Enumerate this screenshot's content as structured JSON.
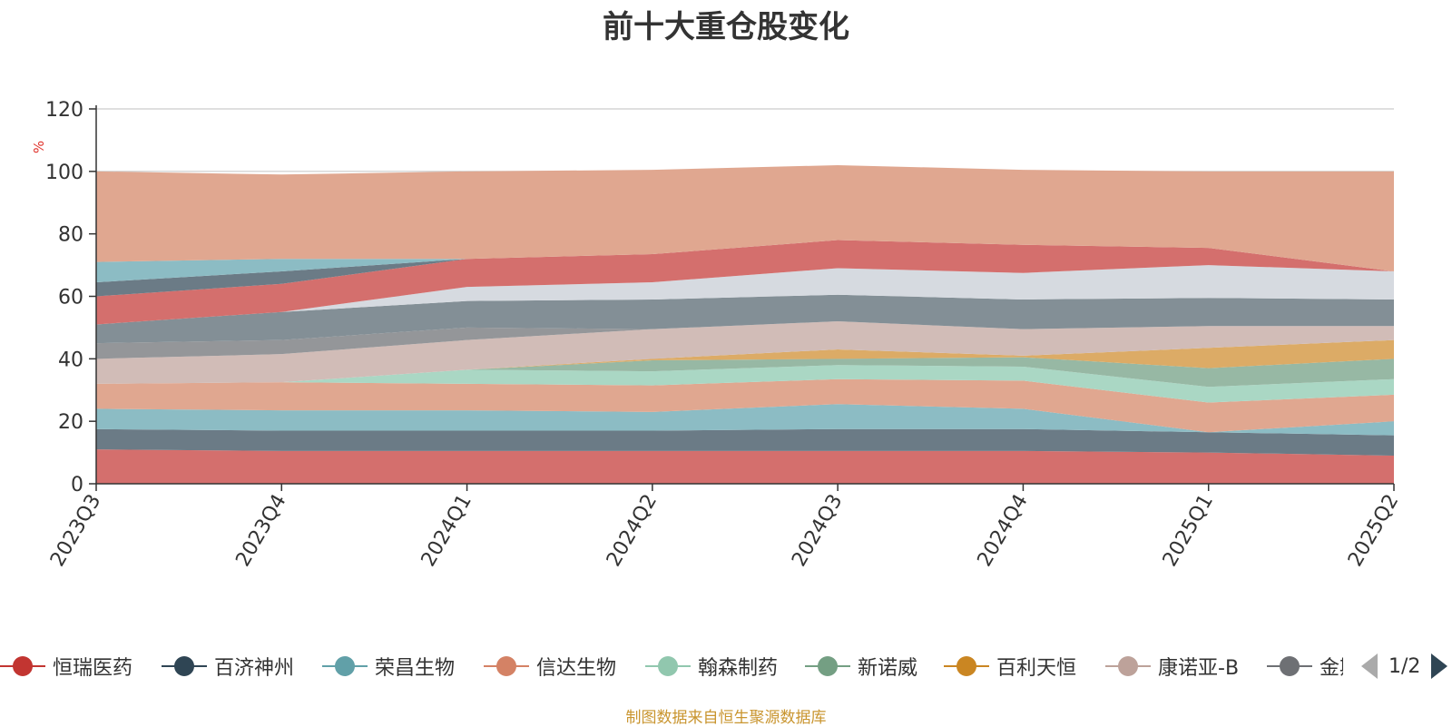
{
  "chart_data": {
    "type": "area",
    "title": "前十大重仓股变化",
    "ylabel": "%",
    "ylim": [
      0,
      120
    ],
    "yticks": [
      0,
      20,
      40,
      60,
      80,
      100,
      120
    ],
    "categories": [
      "2023Q3",
      "2023Q4",
      "2024Q1",
      "2024Q2",
      "2024Q3",
      "2024Q4",
      "2025Q1",
      "2025Q2"
    ],
    "stacked": true,
    "legend_position": "bottom",
    "series": [
      {
        "name": "恒瑞医药",
        "color": "#d46f6d",
        "values": [
          11,
          10.5,
          10.5,
          10.5,
          10.5,
          10.5,
          10,
          9
        ]
      },
      {
        "name": "百济神州",
        "color": "#6b7b86",
        "values": [
          6.5,
          6.5,
          6.5,
          6.5,
          7,
          7,
          6.5,
          6.5
        ]
      },
      {
        "name": "荣昌生物",
        "color": "#8cbcc4",
        "values": [
          6.5,
          6.5,
          6.5,
          6,
          8,
          6.5,
          0,
          4.5
        ]
      },
      {
        "name": "信达生物",
        "color": "#e0a790",
        "values": [
          8,
          9,
          8.5,
          8.5,
          8,
          9,
          9.5,
          8.5
        ]
      },
      {
        "name": "翰森制药",
        "color": "#aad7c4",
        "values": [
          0,
          0,
          4.5,
          4.5,
          4.5,
          4.5,
          5,
          5
        ]
      },
      {
        "name": "新诺威",
        "color": "#97b8a4",
        "values": [
          0,
          0,
          0,
          3.5,
          2,
          3,
          6,
          6.5
        ]
      },
      {
        "name": "百利天恒",
        "color": "#dcab66",
        "values": [
          0,
          0,
          0,
          0.5,
          3,
          0.5,
          6.5,
          6
        ]
      },
      {
        "name": "康诺亚-B",
        "color": "#d1bcb7",
        "values": [
          8,
          9,
          9.5,
          9.5,
          9,
          8.5,
          7,
          4.5
        ]
      },
      {
        "name": "金斯瑞生物科技",
        "color": "#949699",
        "values": [
          5,
          4.5,
          4,
          0,
          0,
          0,
          0,
          0
        ]
      },
      {
        "name": "",
        "color": "#838f96",
        "values": [
          6,
          9,
          8.5,
          9.5,
          8.5,
          9.5,
          9,
          8.5
        ]
      },
      {
        "name": "",
        "color": "#d6dae0",
        "values": [
          0,
          0,
          4.5,
          5.5,
          8.5,
          8.5,
          10.5,
          9
        ]
      },
      {
        "name": "",
        "color": "#d46f6d",
        "values": [
          9,
          9,
          9,
          9,
          9,
          9,
          5.5,
          0
        ]
      },
      {
        "name": "",
        "color": "#6b7b86",
        "values": [
          4.5,
          4,
          0,
          0,
          0,
          0,
          0,
          0
        ]
      },
      {
        "name": "",
        "color": "#8cbcc4",
        "values": [
          6.5,
          4,
          0,
          0,
          0,
          0,
          0,
          0
        ]
      },
      {
        "name": "",
        "color": "#e0a790",
        "values": [
          29,
          27,
          28,
          27,
          24,
          24,
          24.5,
          32
        ]
      }
    ]
  },
  "legend": {
    "visible_items": [
      {
        "label": "恒瑞医药",
        "color": "#c23531"
      },
      {
        "label": "百济神州",
        "color": "#2f4554"
      },
      {
        "label": "荣昌生物",
        "color": "#61a0a8"
      },
      {
        "label": "信达生物",
        "color": "#d48265"
      },
      {
        "label": "翰森制药",
        "color": "#91c7ae"
      },
      {
        "label": "新诺威",
        "color": "#749f83"
      },
      {
        "label": "百利天恒",
        "color": "#ca8622"
      },
      {
        "label": "康诺亚-B",
        "color": "#bda29a"
      },
      {
        "label": "金斯瑞生物科技",
        "color": "#6e7074"
      }
    ],
    "page_indicator": "1/2"
  },
  "footer": {
    "source_text": "制图数据来自恒生聚源数据库"
  }
}
